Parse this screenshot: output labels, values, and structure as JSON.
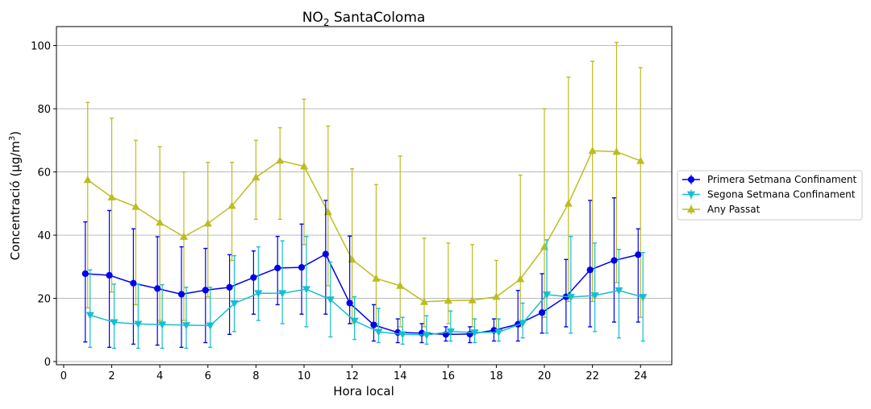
{
  "chart_data": {
    "type": "line",
    "title_main": "NO",
    "title_sub": "2",
    "title_rest": " SantaColoma",
    "xlabel": "Hora local",
    "ylabel_main": "Concentració (μg/m",
    "ylabel_sup": "3",
    "ylabel_end": ")",
    "xlim": [
      -0.3,
      25.3
    ],
    "ylim": [
      -1,
      106
    ],
    "xticks": [
      0,
      2,
      4,
      6,
      8,
      10,
      12,
      14,
      16,
      18,
      20,
      22,
      24
    ],
    "yticks": [
      0,
      20,
      40,
      60,
      80,
      100
    ],
    "grid": "horizontal",
    "legend_position": "right",
    "series": [
      {
        "name": "Primera Setmana Confinament",
        "color": "#0000ee",
        "marker": "circle",
        "x": [
          1,
          2,
          3,
          4,
          5,
          6,
          7,
          8,
          9,
          10,
          11,
          12,
          13,
          14,
          15,
          16,
          17,
          18,
          19,
          20,
          21,
          22,
          23,
          24
        ],
        "y": [
          27.8,
          27.3,
          24.8,
          23.1,
          21.3,
          22.6,
          23.5,
          26.6,
          29.6,
          29.8,
          34.0,
          18.5,
          11.6,
          9.2,
          9.0,
          8.6,
          8.7,
          9.9,
          11.8,
          15.5,
          20.5,
          29.0,
          32.0,
          33.8
        ],
        "err_low": [
          6.2,
          4.5,
          5.5,
          5.2,
          4.5,
          6.0,
          8.6,
          15.0,
          18.0,
          15.0,
          15.0,
          12.0,
          6.5,
          6.0,
          6.0,
          6.5,
          6.0,
          6.5,
          6.5,
          9.0,
          11.0,
          11.0,
          12.5,
          12.5
        ],
        "err_high": [
          44.2,
          47.8,
          42.0,
          39.5,
          36.3,
          35.8,
          33.8,
          35.0,
          39.6,
          43.5,
          51.0,
          39.7,
          18.0,
          13.5,
          12.0,
          11.0,
          11.0,
          13.5,
          22.5,
          27.8,
          32.3,
          51.0,
          51.8,
          42.0
        ]
      },
      {
        "name": "Segona Setmana Confinament",
        "color": "#17becf",
        "marker": "triangle-down",
        "x": [
          1,
          2,
          3,
          4,
          5,
          6,
          7,
          8,
          9,
          10,
          11,
          12,
          13,
          14,
          15,
          16,
          17,
          18,
          19,
          20,
          21,
          22,
          23,
          24
        ],
        "y": [
          14.7,
          12.4,
          11.9,
          11.7,
          11.5,
          11.4,
          18.4,
          21.6,
          21.6,
          22.9,
          19.6,
          12.9,
          9.4,
          8.6,
          8.4,
          9.5,
          9.2,
          9.3,
          12.2,
          21.2,
          20.4,
          20.9,
          22.5,
          20.4
        ],
        "err_low": [
          4.5,
          4.2,
          4.2,
          4.2,
          4.2,
          4.5,
          9.5,
          13.0,
          12.0,
          11.0,
          7.8,
          7.0,
          6.0,
          5.5,
          5.5,
          6.5,
          6.0,
          6.5,
          7.5,
          9.0,
          9.0,
          9.5,
          7.5,
          6.5
        ],
        "err_high": [
          29.0,
          24.5,
          24.5,
          24.3,
          23.5,
          23.5,
          33.5,
          36.3,
          38.2,
          39.6,
          31.5,
          20.5,
          16.8,
          14.0,
          14.5,
          16.0,
          13.5,
          13.5,
          18.5,
          38.5,
          39.6,
          37.5,
          35.5,
          34.5
        ]
      },
      {
        "name": "Any Passat",
        "color": "#bcbd22",
        "marker": "triangle-up",
        "x": [
          1,
          2,
          3,
          4,
          5,
          6,
          7,
          8,
          9,
          10,
          11,
          12,
          13,
          14,
          15,
          16,
          17,
          18,
          19,
          20,
          21,
          22,
          23,
          24
        ],
        "y": [
          57.5,
          52.0,
          49.0,
          44.0,
          39.5,
          43.7,
          49.3,
          58.3,
          63.6,
          61.8,
          47.3,
          32.3,
          26.3,
          24.0,
          18.9,
          19.3,
          19.4,
          20.5,
          26.1,
          36.3,
          50.0,
          66.7,
          66.4,
          63.5
        ],
        "err_low": [
          17.0,
          22.0,
          18.0,
          13.0,
          13.0,
          20.5,
          32.0,
          45.0,
          45.0,
          37.0,
          24.0,
          12.0,
          12.0,
          11.0,
          11.0,
          12.0,
          11.0,
          10.0,
          11.0,
          14.0,
          19.0,
          19.0,
          25.0,
          14.0
        ],
        "err_high": [
          82.0,
          77.0,
          70.0,
          68.0,
          60.0,
          63.0,
          63.0,
          70.0,
          74.0,
          83.0,
          74.5,
          61.0,
          56.0,
          65.0,
          39.0,
          37.5,
          37.0,
          32.0,
          59.0,
          80.0,
          90.0,
          95.0,
          101.0,
          93.0
        ]
      }
    ]
  }
}
